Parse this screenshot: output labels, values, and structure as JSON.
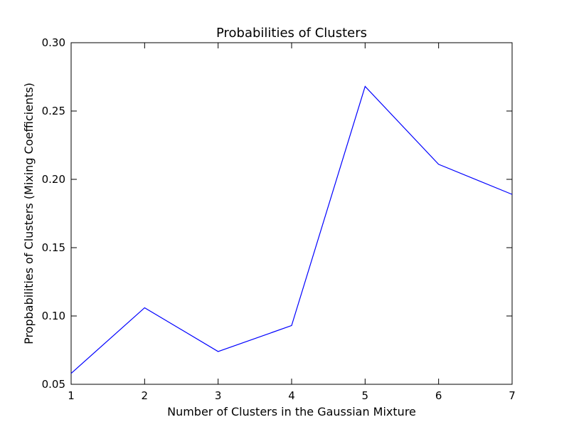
{
  "chart_data": {
    "type": "line",
    "title": "Probabilities of Clusters",
    "xlabel": "Number of Clusters in the Gaussian Mixture",
    "ylabel": "Propbabilities of Clusters (Mixing Coefficients)",
    "x": [
      1,
      2,
      3,
      4,
      5,
      6,
      7
    ],
    "series": [
      {
        "color": "#0000ff",
        "values": [
          0.058,
          0.106,
          0.074,
          0.093,
          0.268,
          0.211,
          0.189
        ]
      }
    ],
    "xlim": [
      1,
      7
    ],
    "ylim": [
      0.05,
      0.3
    ],
    "x_ticks": [
      1,
      2,
      3,
      4,
      5,
      6,
      7
    ],
    "x_tick_labels": [
      "1",
      "2",
      "3",
      "4",
      "5",
      "6",
      "7"
    ],
    "y_ticks": [
      0.05,
      0.1,
      0.15,
      0.2,
      0.25,
      0.3
    ],
    "y_tick_labels": [
      "0.05",
      "0.10",
      "0.15",
      "0.20",
      "0.25",
      "0.30"
    ],
    "grid": false,
    "legend": "none"
  }
}
